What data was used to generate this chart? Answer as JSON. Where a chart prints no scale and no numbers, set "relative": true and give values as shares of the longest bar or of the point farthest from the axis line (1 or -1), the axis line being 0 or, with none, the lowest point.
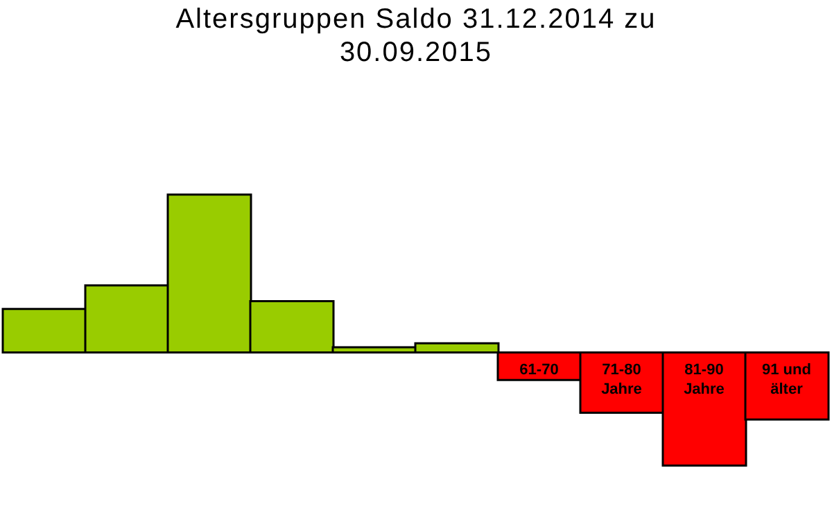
{
  "chart_data": {
    "type": "bar",
    "title": "Altersgruppen Saldo 31.12.2014 zu 30.09.2015",
    "relative": true,
    "categories": [
      null,
      null,
      null,
      null,
      null,
      null,
      "61-70",
      "71-80 Jahre",
      "81-90 Jahre",
      "91 und älter"
    ],
    "values": [
      0.275,
      0.425,
      1,
      0.325,
      0.033,
      0.058,
      -0.175,
      -0.383,
      -0.717,
      -0.425
    ],
    "colors": [
      "#99cc00",
      "#99cc00",
      "#99cc00",
      "#99cc00",
      "#99cc00",
      "#99cc00",
      "#ff0000",
      "#ff0000",
      "#ff0000",
      "#ff0000"
    ]
  }
}
